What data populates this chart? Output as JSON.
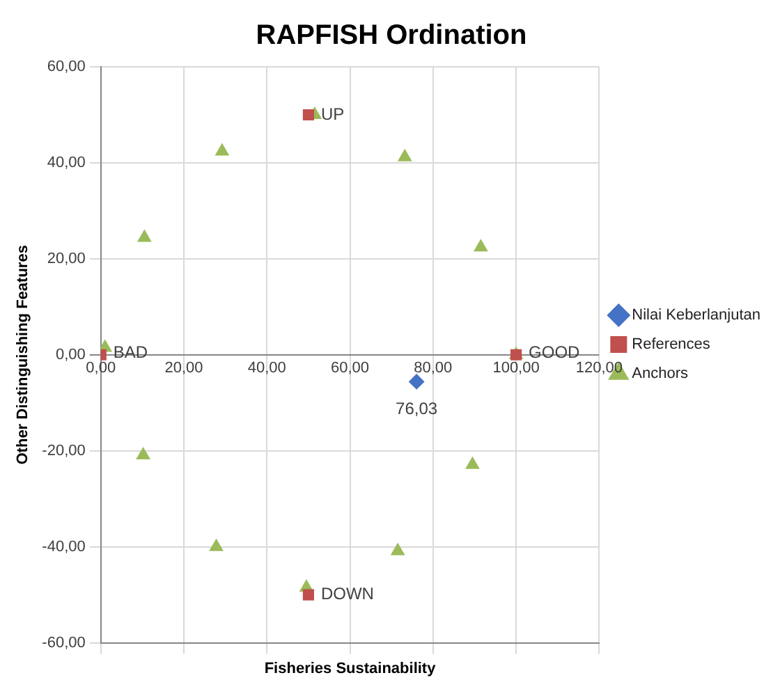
{
  "chart_data": {
    "type": "scatter",
    "title": "RAPFISH Ordination",
    "xlabel": "Fisheries Sustainability",
    "ylabel": "Other Distinguishing Features",
    "xlim": [
      0,
      120
    ],
    "ylim": [
      -60,
      60
    ],
    "xticks": [
      {
        "value": 0,
        "label": "0,00"
      },
      {
        "value": 20,
        "label": "20,00"
      },
      {
        "value": 40,
        "label": "40,00"
      },
      {
        "value": 60,
        "label": "60,00"
      },
      {
        "value": 80,
        "label": "80,00"
      },
      {
        "value": 100,
        "label": "100,00"
      },
      {
        "value": 120,
        "label": "120,00"
      }
    ],
    "yticks": [
      {
        "value": -60,
        "label": "-60,00"
      },
      {
        "value": -40,
        "label": "-40,00"
      },
      {
        "value": -20,
        "label": "-20,00"
      },
      {
        "value": 0,
        "label": "0,00"
      },
      {
        "value": 20,
        "label": "20,00"
      },
      {
        "value": 40,
        "label": "40,00"
      },
      {
        "value": 60,
        "label": "60,00"
      }
    ],
    "grid": true,
    "legend": "right",
    "annotations": [
      {
        "text": "76,03",
        "x": 76.03,
        "y": -5.6
      }
    ],
    "series": [
      {
        "name": "Nilai Keberlanjutan",
        "color": "#4472c4",
        "marker": "diamond",
        "x": [
          76.03
        ],
        "values": [
          -5.6
        ]
      },
      {
        "name": "References",
        "color": "#c0504d",
        "marker": "square",
        "x": [
          0,
          100,
          50,
          50
        ],
        "values": [
          0,
          0,
          50,
          -50
        ],
        "value_labels": [
          "BAD",
          "GOOD",
          "UP",
          "DOWN"
        ]
      },
      {
        "name": "Anchors",
        "color": "#9bbb59",
        "marker": "triangle",
        "x": [
          1,
          10.5,
          29.2,
          51.5,
          73.2,
          91.5,
          100,
          10.2,
          27.8,
          49.5,
          71.5,
          89.5
        ],
        "values": [
          1.5,
          24.4,
          42.4,
          50,
          41.2,
          22.4,
          0,
          -20.9,
          -40,
          -48.5,
          -40.9,
          -22.9
        ]
      }
    ]
  }
}
